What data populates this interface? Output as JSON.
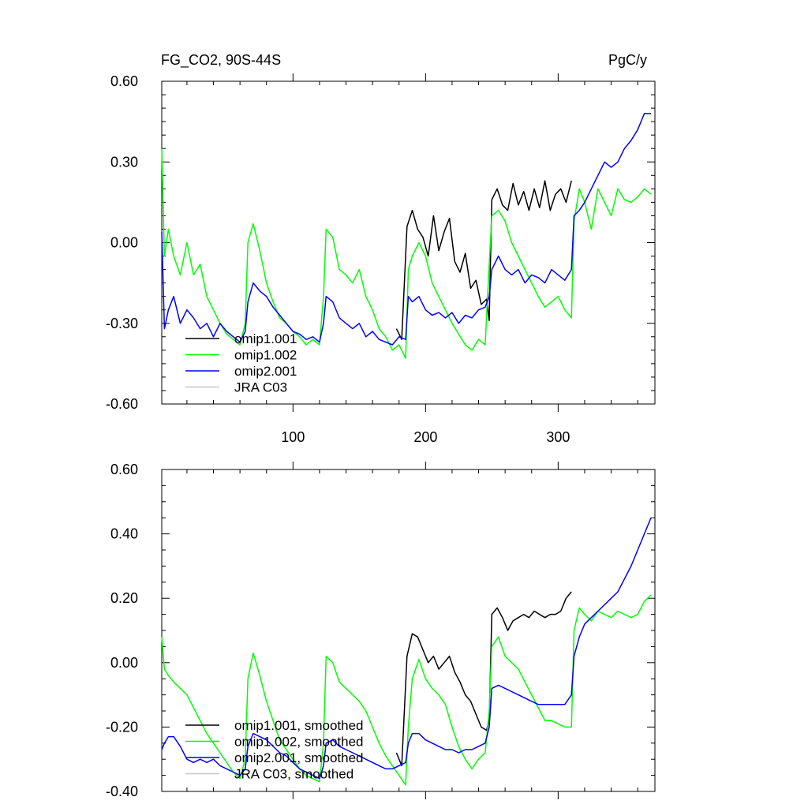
{
  "figure": {
    "title": "FG_CO2, 90S-44S",
    "units": "PgC/y"
  },
  "chart_data": [
    {
      "type": "line",
      "panel": "raw",
      "title": "FG_CO2, 90S-44S",
      "units": "PgC/y",
      "xlabel": "",
      "ylabel": "",
      "xlim": [
        1,
        373
      ],
      "ylim": [
        -0.6,
        0.6
      ],
      "xticks": [
        100,
        200,
        300
      ],
      "xtick_labels": [
        "100",
        "200",
        "300"
      ],
      "yticks": [
        -0.6,
        -0.3,
        0.0,
        0.3,
        0.6
      ],
      "ytick_labels": [
        "-0.60",
        "-0.30",
        "0.00",
        "0.30",
        "0.60"
      ],
      "legend_position": "bottom-left",
      "series": [
        {
          "name": "omip1.001",
          "color": "#000000",
          "x": [
            178,
            182,
            186,
            190,
            194,
            198,
            202,
            206,
            210,
            214,
            218,
            222,
            226,
            230,
            234,
            238,
            242,
            246,
            248,
            250,
            254,
            258,
            262,
            266,
            270,
            274,
            278,
            282,
            286,
            290,
            294,
            298,
            302,
            306,
            310
          ],
          "y": [
            -0.32,
            -0.36,
            0.06,
            0.12,
            0.05,
            0.02,
            -0.05,
            0.1,
            -0.03,
            0.04,
            0.09,
            -0.07,
            -0.11,
            -0.04,
            -0.17,
            -0.14,
            -0.23,
            -0.21,
            -0.29,
            0.16,
            0.2,
            0.14,
            0.12,
            0.22,
            0.14,
            0.19,
            0.12,
            0.2,
            0.13,
            0.23,
            0.12,
            0.18,
            0.2,
            0.15,
            0.23
          ]
        },
        {
          "name": "omip1.002",
          "color": "#00ff00",
          "x": [
            1,
            3,
            6,
            10,
            15,
            20,
            25,
            30,
            35,
            40,
            45,
            50,
            55,
            60,
            64,
            66,
            70,
            75,
            80,
            85,
            90,
            95,
            100,
            105,
            110,
            115,
            120,
            123,
            125,
            130,
            135,
            140,
            145,
            150,
            155,
            160,
            165,
            170,
            175,
            180,
            185,
            187,
            190,
            195,
            200,
            205,
            210,
            215,
            220,
            225,
            230,
            235,
            240,
            245,
            248,
            250,
            255,
            260,
            265,
            270,
            275,
            280,
            285,
            290,
            295,
            300,
            305,
            310,
            312,
            316,
            320,
            325,
            330,
            335,
            340,
            345,
            350,
            355,
            360,
            365,
            370
          ],
          "y": [
            0.35,
            -0.05,
            0.05,
            -0.05,
            -0.12,
            0.0,
            -0.12,
            -0.08,
            -0.2,
            -0.25,
            -0.3,
            -0.34,
            -0.36,
            -0.38,
            -0.3,
            0.0,
            0.07,
            -0.03,
            -0.15,
            -0.22,
            -0.28,
            -0.3,
            -0.33,
            -0.35,
            -0.38,
            -0.36,
            -0.38,
            -0.2,
            0.05,
            0.02,
            -0.1,
            -0.12,
            -0.15,
            -0.1,
            -0.2,
            -0.25,
            -0.32,
            -0.35,
            -0.4,
            -0.38,
            -0.43,
            -0.1,
            -0.05,
            0.0,
            -0.05,
            -0.15,
            -0.2,
            -0.25,
            -0.3,
            -0.34,
            -0.38,
            -0.4,
            -0.36,
            -0.38,
            -0.08,
            0.1,
            0.12,
            0.08,
            0.0,
            -0.05,
            -0.1,
            -0.15,
            -0.2,
            -0.24,
            -0.22,
            -0.2,
            -0.25,
            -0.28,
            0.08,
            0.2,
            0.15,
            0.05,
            0.2,
            0.15,
            0.1,
            0.2,
            0.16,
            0.15,
            0.17,
            0.2,
            0.18
          ]
        },
        {
          "name": "omip2.001",
          "color": "#0000ff",
          "x": [
            1,
            3,
            6,
            10,
            15,
            20,
            25,
            30,
            35,
            40,
            45,
            50,
            55,
            60,
            64,
            66,
            70,
            75,
            80,
            85,
            90,
            95,
            100,
            105,
            110,
            115,
            120,
            123,
            125,
            130,
            135,
            140,
            145,
            150,
            155,
            160,
            165,
            170,
            175,
            180,
            185,
            187,
            190,
            195,
            200,
            205,
            210,
            215,
            220,
            225,
            230,
            235,
            240,
            245,
            248,
            250,
            255,
            260,
            265,
            270,
            275,
            280,
            285,
            290,
            295,
            300,
            305,
            310,
            312,
            316,
            320,
            325,
            330,
            335,
            340,
            345,
            350,
            355,
            360,
            365,
            370
          ],
          "y": [
            0.04,
            -0.32,
            -0.25,
            -0.2,
            -0.3,
            -0.25,
            -0.28,
            -0.32,
            -0.3,
            -0.35,
            -0.3,
            -0.33,
            -0.35,
            -0.37,
            -0.33,
            -0.22,
            -0.15,
            -0.18,
            -0.2,
            -0.24,
            -0.27,
            -0.3,
            -0.33,
            -0.34,
            -0.36,
            -0.35,
            -0.37,
            -0.3,
            -0.2,
            -0.22,
            -0.28,
            -0.3,
            -0.32,
            -0.3,
            -0.35,
            -0.33,
            -0.36,
            -0.37,
            -0.38,
            -0.35,
            -0.36,
            -0.2,
            -0.22,
            -0.2,
            -0.25,
            -0.27,
            -0.26,
            -0.28,
            -0.26,
            -0.3,
            -0.27,
            -0.28,
            -0.25,
            -0.24,
            -0.2,
            -0.1,
            -0.05,
            -0.1,
            -0.12,
            -0.1,
            -0.15,
            -0.12,
            -0.13,
            -0.15,
            -0.1,
            -0.12,
            -0.14,
            -0.1,
            0.1,
            0.12,
            0.15,
            0.2,
            0.25,
            0.3,
            0.28,
            0.3,
            0.35,
            0.38,
            0.42,
            0.48,
            0.48
          ]
        },
        {
          "name": "JRA C03",
          "color": "#c8c8c8",
          "x": [],
          "y": []
        }
      ]
    },
    {
      "type": "line",
      "panel": "smoothed",
      "title": "",
      "xlabel": "",
      "ylabel": "",
      "xlim": [
        1,
        373
      ],
      "ylim": [
        -0.4,
        0.6
      ],
      "xticks": [
        100,
        200,
        300
      ],
      "xtick_labels": [
        "",
        "",
        ""
      ],
      "yticks": [
        -0.4,
        -0.2,
        0.0,
        0.2,
        0.4,
        0.6
      ],
      "ytick_labels": [
        "-0.40",
        "-0.20",
        "0.00",
        "0.20",
        "0.40",
        "0.60"
      ],
      "legend_position": "bottom-left",
      "series": [
        {
          "name": "omip1.001, smoothed",
          "color": "#000000",
          "x": [
            178,
            182,
            186,
            190,
            194,
            198,
            202,
            206,
            210,
            214,
            218,
            222,
            226,
            230,
            234,
            238,
            242,
            246,
            248,
            250,
            254,
            258,
            262,
            266,
            270,
            274,
            278,
            282,
            286,
            290,
            294,
            298,
            302,
            306,
            310
          ],
          "y": [
            -0.28,
            -0.32,
            0.02,
            0.09,
            0.08,
            0.04,
            0.0,
            0.02,
            -0.02,
            0.0,
            0.02,
            -0.03,
            -0.06,
            -0.1,
            -0.12,
            -0.16,
            -0.2,
            -0.21,
            -0.18,
            0.15,
            0.17,
            0.14,
            0.1,
            0.13,
            0.14,
            0.15,
            0.14,
            0.16,
            0.15,
            0.14,
            0.15,
            0.15,
            0.16,
            0.2,
            0.22
          ]
        },
        {
          "name": "omip1.002, smoothed",
          "color": "#00ff00",
          "x": [
            1,
            3,
            6,
            10,
            15,
            20,
            25,
            30,
            35,
            40,
            45,
            50,
            55,
            60,
            64,
            66,
            70,
            75,
            80,
            85,
            90,
            95,
            100,
            105,
            110,
            115,
            120,
            123,
            125,
            130,
            135,
            140,
            145,
            150,
            155,
            160,
            165,
            170,
            175,
            180,
            185,
            187,
            190,
            195,
            200,
            205,
            210,
            215,
            220,
            225,
            230,
            235,
            240,
            245,
            248,
            250,
            255,
            260,
            265,
            270,
            275,
            280,
            285,
            290,
            295,
            300,
            305,
            310,
            312,
            316,
            320,
            325,
            330,
            335,
            340,
            345,
            350,
            355,
            360,
            365,
            370
          ],
          "y": [
            0.08,
            -0.02,
            -0.04,
            -0.06,
            -0.08,
            -0.1,
            -0.14,
            -0.18,
            -0.22,
            -0.25,
            -0.28,
            -0.31,
            -0.34,
            -0.36,
            -0.3,
            -0.05,
            0.03,
            -0.04,
            -0.12,
            -0.18,
            -0.24,
            -0.27,
            -0.3,
            -0.33,
            -0.35,
            -0.36,
            -0.37,
            -0.25,
            0.02,
            0.0,
            -0.06,
            -0.08,
            -0.1,
            -0.12,
            -0.15,
            -0.2,
            -0.25,
            -0.29,
            -0.32,
            -0.35,
            -0.38,
            -0.2,
            -0.05,
            0.01,
            -0.05,
            -0.08,
            -0.1,
            -0.13,
            -0.2,
            -0.26,
            -0.3,
            -0.33,
            -0.3,
            -0.28,
            -0.15,
            0.05,
            0.08,
            0.02,
            0.0,
            -0.02,
            -0.06,
            -0.1,
            -0.14,
            -0.18,
            -0.18,
            -0.19,
            -0.2,
            -0.2,
            0.1,
            0.17,
            0.15,
            0.13,
            0.16,
            0.15,
            0.14,
            0.16,
            0.15,
            0.14,
            0.15,
            0.19,
            0.21
          ]
        },
        {
          "name": "omip2.001, smoothed",
          "color": "#0000ff",
          "x": [
            1,
            3,
            6,
            10,
            15,
            20,
            25,
            30,
            35,
            40,
            45,
            50,
            55,
            60,
            64,
            66,
            70,
            75,
            80,
            85,
            90,
            95,
            100,
            105,
            110,
            115,
            120,
            123,
            125,
            130,
            135,
            140,
            145,
            150,
            155,
            160,
            165,
            170,
            175,
            180,
            185,
            187,
            190,
            195,
            200,
            205,
            210,
            215,
            220,
            225,
            230,
            235,
            240,
            245,
            248,
            250,
            255,
            260,
            265,
            270,
            275,
            280,
            285,
            290,
            295,
            300,
            305,
            310,
            312,
            316,
            320,
            325,
            330,
            335,
            340,
            345,
            350,
            355,
            360,
            365,
            370
          ],
          "y": [
            -0.27,
            -0.25,
            -0.23,
            -0.23,
            -0.26,
            -0.3,
            -0.31,
            -0.3,
            -0.31,
            -0.3,
            -0.32,
            -0.33,
            -0.34,
            -0.35,
            -0.33,
            -0.26,
            -0.22,
            -0.23,
            -0.24,
            -0.26,
            -0.28,
            -0.29,
            -0.31,
            -0.33,
            -0.34,
            -0.35,
            -0.36,
            -0.32,
            -0.25,
            -0.24,
            -0.26,
            -0.27,
            -0.28,
            -0.29,
            -0.3,
            -0.31,
            -0.32,
            -0.33,
            -0.33,
            -0.32,
            -0.31,
            -0.25,
            -0.22,
            -0.22,
            -0.24,
            -0.25,
            -0.26,
            -0.27,
            -0.27,
            -0.28,
            -0.27,
            -0.27,
            -0.26,
            -0.25,
            -0.2,
            -0.08,
            -0.07,
            -0.08,
            -0.09,
            -0.1,
            -0.11,
            -0.12,
            -0.13,
            -0.13,
            -0.13,
            -0.13,
            -0.13,
            -0.1,
            0.02,
            0.08,
            0.12,
            0.14,
            0.16,
            0.18,
            0.2,
            0.22,
            0.26,
            0.3,
            0.35,
            0.4,
            0.45
          ]
        },
        {
          "name": "JRA C03, smoothed",
          "color": "#c8c8c8",
          "x": [],
          "y": []
        }
      ]
    }
  ]
}
